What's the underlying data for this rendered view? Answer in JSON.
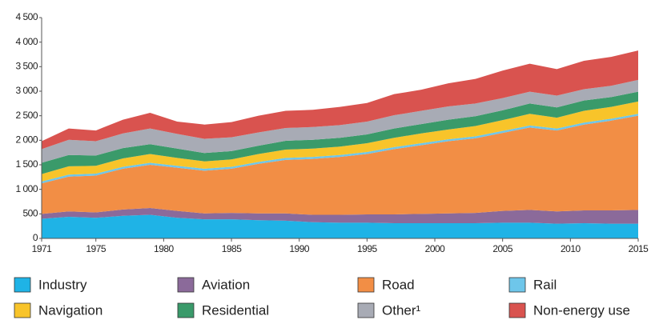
{
  "chart_data": {
    "type": "stacked_area",
    "x": [
      1971,
      1973,
      1975,
      1977,
      1979,
      1981,
      1983,
      1985,
      1987,
      1989,
      1991,
      1993,
      1995,
      1997,
      1999,
      2001,
      2003,
      2005,
      2007,
      2009,
      2011,
      2013,
      2015
    ],
    "series": [
      {
        "name": "Industry",
        "color": "#1fb3e6",
        "values": [
          400,
          440,
          420,
          460,
          480,
          420,
          390,
          390,
          370,
          360,
          330,
          320,
          320,
          310,
          310,
          310,
          310,
          320,
          320,
          300,
          310,
          300,
          300
        ]
      },
      {
        "name": "Aviation",
        "color": "#8b6a9a",
        "values": [
          100,
          110,
          110,
          130,
          140,
          140,
          120,
          130,
          140,
          150,
          150,
          160,
          170,
          180,
          190,
          200,
          210,
          240,
          260,
          250,
          260,
          270,
          280
        ]
      },
      {
        "name": "Road",
        "color": "#f28e45",
        "values": [
          620,
          710,
          750,
          830,
          880,
          880,
          870,
          900,
          1010,
          1090,
          1140,
          1180,
          1230,
          1330,
          1400,
          1470,
          1520,
          1590,
          1680,
          1650,
          1750,
          1830,
          1920
        ]
      },
      {
        "name": "Rail",
        "color": "#6ec6ea",
        "values": [
          40,
          40,
          40,
          40,
          40,
          40,
          40,
          40,
          40,
          40,
          40,
          40,
          40,
          40,
          40,
          40,
          40,
          40,
          40,
          40,
          40,
          40,
          40
        ]
      },
      {
        "name": "Navigation",
        "color": "#f8c42a",
        "values": [
          150,
          170,
          160,
          170,
          180,
          160,
          150,
          150,
          160,
          170,
          170,
          170,
          180,
          190,
          200,
          200,
          210,
          220,
          240,
          220,
          240,
          240,
          250
        ]
      },
      {
        "name": "Residential",
        "color": "#3a9a6a",
        "values": [
          230,
          230,
          210,
          210,
          200,
          190,
          170,
          170,
          170,
          180,
          180,
          180,
          180,
          190,
          190,
          200,
          200,
          200,
          210,
          210,
          210,
          200,
          200
        ]
      },
      {
        "name": "Other¹",
        "color": "#a8abb5",
        "values": [
          280,
          310,
          290,
          300,
          320,
          300,
          290,
          280,
          270,
          260,
          260,
          260,
          260,
          270,
          270,
          270,
          260,
          250,
          240,
          240,
          230,
          230,
          240
        ]
      },
      {
        "name": "Non-energy use",
        "color": "#d9534f",
        "values": [
          160,
          230,
          220,
          280,
          320,
          250,
          290,
          310,
          340,
          350,
          350,
          370,
          380,
          430,
          430,
          470,
          500,
          560,
          570,
          540,
          580,
          590,
          600
        ]
      }
    ],
    "xlim": [
      1971,
      2015
    ],
    "xticks": [
      1971,
      1975,
      1980,
      1985,
      1990,
      1995,
      2000,
      2005,
      2010,
      2015
    ],
    "ylim": [
      0,
      4500
    ],
    "yticks": [
      0,
      500,
      {
        "value": 1000,
        "label": "1 000"
      },
      {
        "value": 1500,
        "label": "1 500"
      },
      {
        "value": 2000,
        "label": "2 000"
      },
      {
        "value": 2500,
        "label": "2 500"
      },
      {
        "value": 3000,
        "label": "3 000"
      },
      {
        "value": 3500,
        "label": "3 500"
      },
      {
        "value": 4000,
        "label": "4 000"
      },
      {
        "value": 4500,
        "label": "4 500"
      }
    ]
  }
}
